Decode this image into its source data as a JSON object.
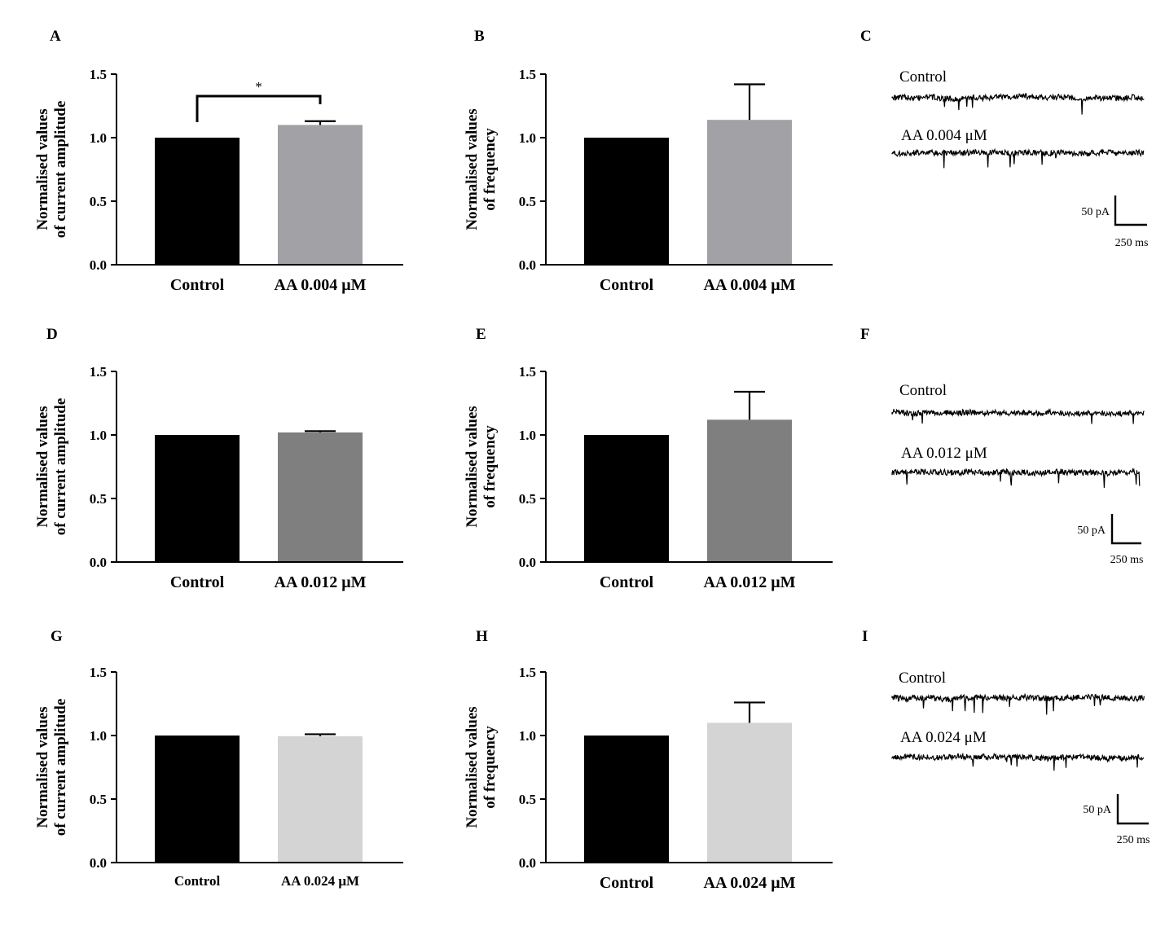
{
  "colors": {
    "control": "#000000",
    "aa_0_004": "#a2a2a6",
    "aa_0_012": "#7f7f7f",
    "aa_0_024": "#d4d4d4"
  },
  "chart_data": [
    {
      "panel": "A",
      "type": "bar",
      "ylabel": [
        "Normalised values",
        "of current amplitude"
      ],
      "ylim": [
        0,
        1.5
      ],
      "yticks": [
        "0.0",
        "0.5",
        "1.0",
        "1.5"
      ],
      "categories": [
        "Control",
        "AA 0.004 μM"
      ],
      "values": [
        1.0,
        1.1
      ],
      "errors": [
        0,
        0.03
      ],
      "bar_colors": [
        "#000000",
        "#a2a2a6"
      ],
      "significance": {
        "between": [
          0,
          1
        ],
        "label": "*"
      }
    },
    {
      "panel": "B",
      "type": "bar",
      "ylabel": [
        "Normalised values",
        "of frequency"
      ],
      "ylim": [
        0,
        1.5
      ],
      "yticks": [
        "0.0",
        "0.5",
        "1.0",
        "1.5"
      ],
      "categories": [
        "Control",
        "AA 0.004 μM"
      ],
      "values": [
        1.0,
        1.14
      ],
      "errors": [
        0,
        0.28
      ],
      "bar_colors": [
        "#000000",
        "#a2a2a6"
      ]
    },
    {
      "panel": "D",
      "type": "bar",
      "ylabel": [
        "Normalised values",
        "of current amplitude"
      ],
      "ylim": [
        0,
        1.5
      ],
      "yticks": [
        "0.0",
        "0.5",
        "1.0",
        "1.5"
      ],
      "categories": [
        "Control",
        "AA 0.012 μM"
      ],
      "values": [
        1.0,
        1.02
      ],
      "errors": [
        0,
        0.01
      ],
      "bar_colors": [
        "#000000",
        "#7f7f7f"
      ]
    },
    {
      "panel": "E",
      "type": "bar",
      "ylabel": [
        "Normalised values",
        "of frequency"
      ],
      "ylim": [
        0,
        1.5
      ],
      "yticks": [
        "0.0",
        "0.5",
        "1.0",
        "1.5"
      ],
      "categories": [
        "Control",
        "AA 0.012 μM"
      ],
      "values": [
        1.0,
        1.12
      ],
      "errors": [
        0,
        0.22
      ],
      "bar_colors": [
        "#000000",
        "#7f7f7f"
      ]
    },
    {
      "panel": "G",
      "type": "bar",
      "ylabel": [
        "Normalised values",
        "of current amplitude"
      ],
      "ylim": [
        0,
        1.5
      ],
      "yticks": [
        "0.0",
        "0.5",
        "1.0",
        "1.5"
      ],
      "categories": [
        "Control",
        "AA 0.024 μM"
      ],
      "values": [
        1.0,
        0.995
      ],
      "errors": [
        0,
        0.015
      ],
      "bar_colors": [
        "#000000",
        "#d4d4d4"
      ]
    },
    {
      "panel": "H",
      "type": "bar",
      "ylabel": [
        "Normalised values",
        "of frequency"
      ],
      "ylim": [
        0,
        1.5
      ],
      "yticks": [
        "0.0",
        "0.5",
        "1.0",
        "1.5"
      ],
      "categories": [
        "Control",
        "AA 0.024 μM"
      ],
      "values": [
        1.0,
        1.1
      ],
      "errors": [
        0,
        0.16
      ],
      "bar_colors": [
        "#000000",
        "#d4d4d4"
      ]
    }
  ],
  "traces": [
    {
      "panel": "C",
      "labels": [
        "Control",
        "AA 0.004 μM"
      ],
      "scale_y": "50 pA",
      "scale_x": "250 ms"
    },
    {
      "panel": "F",
      "labels": [
        "Control",
        "AA 0.012 μM"
      ],
      "scale_y": "50 pA",
      "scale_x": "250 ms"
    },
    {
      "panel": "I",
      "labels": [
        "Control",
        "AA 0.024 μM"
      ],
      "scale_y": "50 pA",
      "scale_x": "250 ms"
    }
  ]
}
